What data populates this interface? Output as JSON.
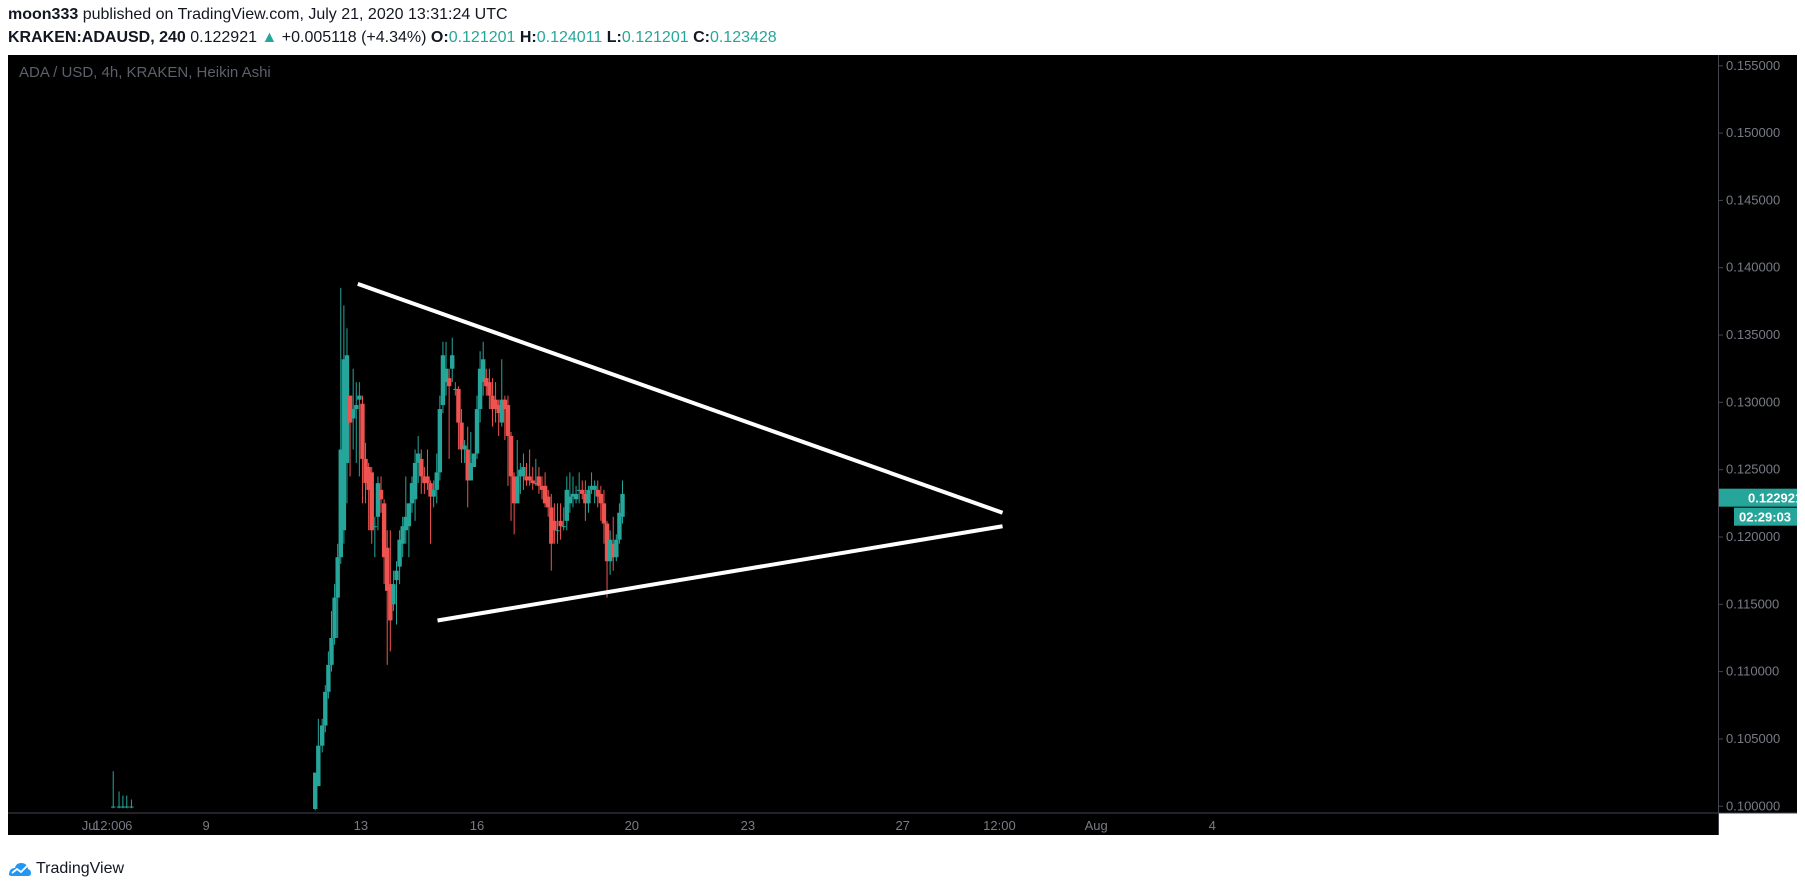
{
  "header": {
    "author": "moon333",
    "published_text": "published on TradingView.com, July 21, 2020 13:31:24 UTC",
    "symbol": "KRAKEN:ADAUSD, 240",
    "last": "0.122921",
    "change_arrow": "▲",
    "change": "+0.005118 (+4.34%)",
    "open_label": "O:",
    "open": "0.121201",
    "high_label": "H:",
    "high": "0.124011",
    "low_label": "L:",
    "low": "0.121201",
    "close_label": "C:",
    "close": "0.123428"
  },
  "footer": {
    "brand": "TradingView",
    "logo_icon": "tradingview-logo-icon"
  },
  "colors": {
    "background": "#000000",
    "up": "#26a69a",
    "down": "#ef5350",
    "text": "#131722",
    "axis_text": "#787b86"
  },
  "chart_data": {
    "type": "candlestick",
    "style": "Heikin Ashi",
    "legend": "ADA / USD, 4h, KRAKEN, Heikin Ashi",
    "ylim": [
      0.0995,
      0.1558
    ],
    "y_ticks": [
      "0.100000",
      "0.105000",
      "0.110000",
      "0.115000",
      "0.120000",
      "0.125000",
      "0.130000",
      "0.135000",
      "0.140000",
      "0.145000",
      "0.150000",
      "0.155000"
    ],
    "x_ticks": [
      {
        "t": 0.0,
        "label": "Jul"
      },
      {
        "t": 0.5,
        "label": "12:00"
      },
      {
        "t": 1.0,
        "label": "6"
      },
      {
        "t": 3.0,
        "label": "9"
      },
      {
        "t": 7.0,
        "label": "13"
      },
      {
        "t": 10.0,
        "label": "16"
      },
      {
        "t": 14.0,
        "label": "20"
      },
      {
        "t": 17.0,
        "label": "23"
      },
      {
        "t": 21.0,
        "label": "27"
      },
      {
        "t": 23.5,
        "label": "12:00"
      },
      {
        "t": 26.0,
        "label": "Aug"
      },
      {
        "t": 29.0,
        "label": "4"
      }
    ],
    "price_badge": {
      "value": "0.122921",
      "countdown": "02:29:03"
    },
    "trend_lines": [
      {
        "from": [
          6.92,
          0.1388
        ],
        "to": [
          23.58,
          0.1218
        ]
      },
      {
        "from": [
          8.98,
          0.1138
        ],
        "to": [
          23.58,
          0.1208
        ]
      }
    ],
    "candles": [
      [
        0.6,
        0.09992,
        0.1026,
        0.09985,
        0.09998
      ],
      [
        0.75,
        0.09992,
        0.1011,
        0.09985,
        0.09998
      ],
      [
        0.85,
        0.09992,
        0.1008,
        0.09985,
        0.09998
      ],
      [
        0.95,
        0.09992,
        0.1008,
        0.09985,
        0.09998
      ],
      [
        1.07,
        0.09992,
        0.1005,
        0.09985,
        0.09998
      ],
      [
        5.82,
        0.0998,
        0.1025,
        0.0997,
        0.1025
      ],
      [
        5.9,
        0.1015,
        0.1065,
        0.1015,
        0.1045
      ],
      [
        6.0,
        0.1045,
        0.1065,
        0.104,
        0.106
      ],
      [
        6.08,
        0.106,
        0.109,
        0.1055,
        0.1085
      ],
      [
        6.16,
        0.1085,
        0.1115,
        0.108,
        0.1105
      ],
      [
        6.24,
        0.1105,
        0.1145,
        0.11,
        0.1125
      ],
      [
        6.32,
        0.1125,
        0.1165,
        0.112,
        0.1155
      ],
      [
        6.4,
        0.1155,
        0.1195,
        0.1125,
        0.1185
      ],
      [
        6.48,
        0.1185,
        0.1385,
        0.118,
        0.1265
      ],
      [
        6.56,
        0.1205,
        0.1372,
        0.1195,
        0.1332
      ],
      [
        6.64,
        0.1255,
        0.1355,
        0.1225,
        0.1335
      ],
      [
        6.72,
        0.1305,
        0.1305,
        0.1245,
        0.1285
      ],
      [
        6.8,
        0.1288,
        0.1325,
        0.1265,
        0.1295
      ],
      [
        6.88,
        0.1295,
        0.1315,
        0.1255,
        0.1298
      ],
      [
        6.96,
        0.1302,
        0.1315,
        0.1245,
        0.1305
      ],
      [
        7.04,
        0.1299,
        0.1305,
        0.1225,
        0.1258
      ],
      [
        7.12,
        0.1258,
        0.127,
        0.1225,
        0.124
      ],
      [
        7.2,
        0.1252,
        0.1255,
        0.1205,
        0.1235
      ],
      [
        7.28,
        0.1248,
        0.1252,
        0.1195,
        0.1205
      ],
      [
        7.36,
        0.1208,
        0.1215,
        0.1185,
        0.1208
      ],
      [
        7.44,
        0.1215,
        0.1245,
        0.1205,
        0.124
      ],
      [
        7.52,
        0.1235,
        0.1245,
        0.1218,
        0.1228
      ],
      [
        7.6,
        0.1225,
        0.1228,
        0.1165,
        0.1185
      ],
      [
        7.68,
        0.1192,
        0.1205,
        0.1105,
        0.116
      ],
      [
        7.76,
        0.1165,
        0.1205,
        0.1115,
        0.1138
      ],
      [
        7.84,
        0.115,
        0.1175,
        0.1145,
        0.1165
      ],
      [
        7.92,
        0.1168,
        0.1182,
        0.1135,
        0.1175
      ],
      [
        8.0,
        0.1178,
        0.1205,
        0.1165,
        0.1198
      ],
      [
        8.08,
        0.1195,
        0.1215,
        0.1185,
        0.1208
      ],
      [
        8.16,
        0.1205,
        0.1245,
        0.1195,
        0.1215
      ],
      [
        8.24,
        0.1208,
        0.1225,
        0.1185,
        0.1225
      ],
      [
        8.32,
        0.1225,
        0.1245,
        0.1218,
        0.124
      ],
      [
        8.4,
        0.1228,
        0.1265,
        0.1212,
        0.1255
      ],
      [
        8.48,
        0.1255,
        0.1275,
        0.124,
        0.1262
      ],
      [
        8.56,
        0.1258,
        0.1265,
        0.1232,
        0.1245
      ],
      [
        8.64,
        0.1245,
        0.1252,
        0.1232,
        0.124
      ],
      [
        8.72,
        0.1245,
        0.1265,
        0.1235,
        0.124
      ],
      [
        8.8,
        0.124,
        0.1242,
        0.1195,
        0.123
      ],
      [
        8.88,
        0.123,
        0.1242,
        0.1222,
        0.1235
      ],
      [
        8.96,
        0.1235,
        0.1262,
        0.1225,
        0.1248
      ],
      [
        9.04,
        0.1248,
        0.1305,
        0.1242,
        0.1295
      ],
      [
        9.12,
        0.1298,
        0.1345,
        0.1292,
        0.1335
      ],
      [
        9.2,
        0.1315,
        0.1345,
        0.1305,
        0.1325
      ],
      [
        9.28,
        0.1318,
        0.1325,
        0.1258,
        0.1312
      ],
      [
        9.36,
        0.1325,
        0.1348,
        0.1315,
        0.1335
      ],
      [
        9.44,
        0.131,
        0.1315,
        0.1305,
        0.131
      ],
      [
        9.52,
        0.131,
        0.1312,
        0.1265,
        0.1285
      ],
      [
        9.6,
        0.1285,
        0.1295,
        0.1255,
        0.1265
      ],
      [
        9.68,
        0.1265,
        0.1272,
        0.1255,
        0.1268
      ],
      [
        9.76,
        0.1265,
        0.1282,
        0.1222,
        0.1242
      ],
      [
        9.84,
        0.1242,
        0.1278,
        0.1242,
        0.1255
      ],
      [
        9.92,
        0.1252,
        0.1262,
        0.1252,
        0.1262
      ],
      [
        10.0,
        0.1262,
        0.1305,
        0.1258,
        0.1295
      ],
      [
        10.08,
        0.1295,
        0.1338,
        0.1285,
        0.1325
      ],
      [
        10.16,
        0.1315,
        0.1345,
        0.1305,
        0.1332
      ],
      [
        10.24,
        0.1318,
        0.1325,
        0.1305,
        0.1312
      ],
      [
        10.32,
        0.1315,
        0.1325,
        0.1295,
        0.1305
      ],
      [
        10.4,
        0.1305,
        0.1318,
        0.1282,
        0.1295
      ],
      [
        10.48,
        0.1302,
        0.1315,
        0.1285,
        0.1295
      ],
      [
        10.56,
        0.1298,
        0.1302,
        0.1275,
        0.1292
      ],
      [
        10.64,
        0.1285,
        0.1332,
        0.1282,
        0.1302
      ],
      [
        10.72,
        0.1302,
        0.1305,
        0.1272,
        0.1295
      ],
      [
        10.8,
        0.1298,
        0.1305,
        0.1238,
        0.1275
      ],
      [
        10.88,
        0.1275,
        0.1278,
        0.1212,
        0.1245
      ],
      [
        10.96,
        0.1245,
        0.1248,
        0.1202,
        0.1225
      ],
      [
        11.04,
        0.1225,
        0.1272,
        0.1225,
        0.1245
      ],
      [
        11.12,
        0.1245,
        0.1255,
        0.1232,
        0.125
      ],
      [
        11.2,
        0.1245,
        0.1262,
        0.1235,
        0.1252
      ],
      [
        11.28,
        0.1245,
        0.1255,
        0.1238,
        0.1242
      ],
      [
        11.36,
        0.1245,
        0.1265,
        0.1238,
        0.1242
      ],
      [
        11.44,
        0.1242,
        0.1252,
        0.1235,
        0.124
      ],
      [
        11.52,
        0.124,
        0.1258,
        0.1238,
        0.124
      ],
      [
        11.6,
        0.1245,
        0.1252,
        0.1232,
        0.1238
      ],
      [
        11.68,
        0.1238,
        0.1245,
        0.1228,
        0.1235
      ],
      [
        11.76,
        0.1238,
        0.1248,
        0.1222,
        0.1225
      ],
      [
        11.84,
        0.123,
        0.1235,
        0.1215,
        0.1222
      ],
      [
        11.92,
        0.1222,
        0.1232,
        0.1175,
        0.1195
      ],
      [
        12.0,
        0.1212,
        0.1225,
        0.1195,
        0.1205
      ],
      [
        12.08,
        0.1205,
        0.1225,
        0.1195,
        0.1205
      ],
      [
        12.16,
        0.1212,
        0.1225,
        0.1198,
        0.1208
      ],
      [
        12.24,
        0.1208,
        0.1222,
        0.1205,
        0.1208
      ],
      [
        12.32,
        0.1212,
        0.1245,
        0.1205,
        0.1235
      ],
      [
        12.4,
        0.1225,
        0.1248,
        0.1218,
        0.123
      ],
      [
        12.48,
        0.123,
        0.1245,
        0.1222,
        0.1232
      ],
      [
        12.56,
        0.1228,
        0.1238,
        0.1225,
        0.1232
      ],
      [
        12.64,
        0.1235,
        0.1248,
        0.1225,
        0.1235
      ],
      [
        12.72,
        0.1235,
        0.1242,
        0.1228,
        0.1232
      ],
      [
        12.8,
        0.1232,
        0.1242,
        0.1212,
        0.1225
      ],
      [
        12.88,
        0.1225,
        0.1238,
        0.1218,
        0.1235
      ],
      [
        12.96,
        0.1235,
        0.1248,
        0.1232,
        0.1238
      ],
      [
        13.04,
        0.1235,
        0.1242,
        0.1225,
        0.1238
      ],
      [
        13.12,
        0.1235,
        0.1242,
        0.1222,
        0.123
      ],
      [
        13.2,
        0.1232,
        0.1238,
        0.1212,
        0.1225
      ],
      [
        13.28,
        0.1225,
        0.1235,
        0.1195,
        0.121
      ],
      [
        13.36,
        0.121,
        0.1212,
        0.1155,
        0.1182
      ],
      [
        13.44,
        0.1182,
        0.1205,
        0.1172,
        0.1198
      ],
      [
        13.52,
        0.1195,
        0.1215,
        0.1175,
        0.1185
      ],
      [
        13.6,
        0.1185,
        0.1202,
        0.1182,
        0.1198
      ],
      [
        13.68,
        0.1198,
        0.1225,
        0.1195,
        0.1218
      ],
      [
        13.76,
        0.1215,
        0.1242,
        0.121,
        0.1232
      ]
    ]
  }
}
